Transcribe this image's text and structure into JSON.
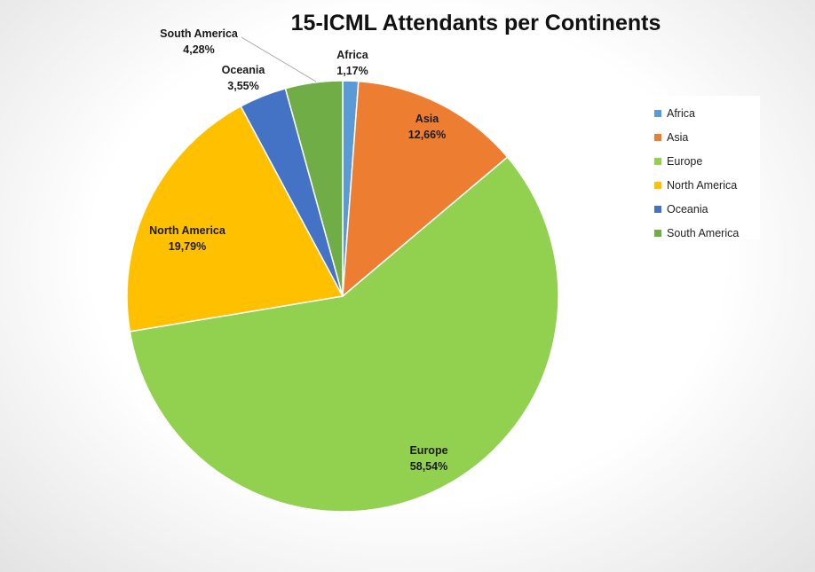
{
  "chart_data": {
    "type": "pie",
    "title": "15-ICML Attendants per Continents",
    "legend_position": "right",
    "slices": [
      {
        "label": "Africa",
        "value": 1.17,
        "value_label": "1,17%",
        "color": "#5B9BD5"
      },
      {
        "label": "Asia",
        "value": 12.66,
        "value_label": "12,66%",
        "color": "#ED7D31"
      },
      {
        "label": "Europe",
        "value": 58.54,
        "value_label": "58,54%",
        "color": "#92D050"
      },
      {
        "label": "North America",
        "value": 19.79,
        "value_label": "19,79%",
        "color": "#FFC000"
      },
      {
        "label": "Oceania",
        "value": 3.55,
        "value_label": "3,55%",
        "color": "#4472C4"
      },
      {
        "label": "South America",
        "value": 4.28,
        "value_label": "4,28%",
        "color": "#70AD47"
      }
    ]
  }
}
